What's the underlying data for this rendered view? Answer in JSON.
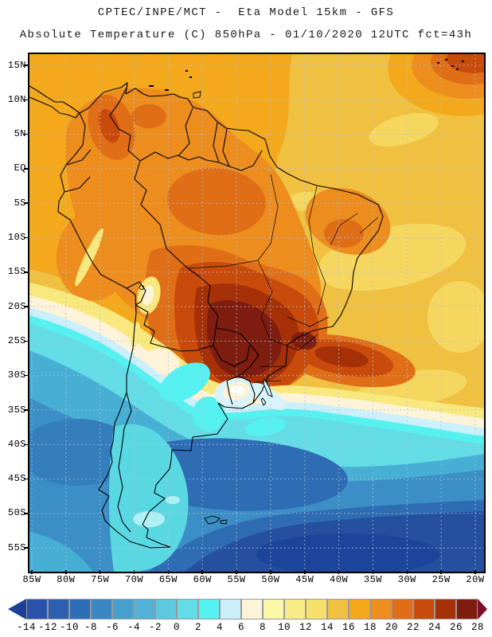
{
  "header": {
    "title": "CPTEC/INPE/MCT -  Eta Model 15km - GFS",
    "subtitle": "Absolute Temperature (C) 850hPa - 01/10/2020 12UTC fct=43h"
  },
  "map": {
    "region_label": "South America",
    "lat_ticks": [
      "15N",
      "10N",
      "5N",
      "EQ",
      "5S",
      "10S",
      "15S",
      "20S",
      "25S",
      "30S",
      "35S",
      "40S",
      "45S",
      "50S",
      "55S"
    ],
    "lon_ticks": [
      "85W",
      "80W",
      "75W",
      "70W",
      "65W",
      "60W",
      "55W",
      "50W",
      "45W",
      "40W",
      "35W",
      "30W",
      "25W",
      "20W"
    ],
    "grid_interval_deg": 5
  },
  "colorbar": {
    "tick_labels": [
      "-14",
      "-12",
      "-10",
      "-8",
      "-6",
      "-4",
      "-2",
      "0",
      "2",
      "4",
      "6",
      "8",
      "10",
      "12",
      "14",
      "16",
      "18",
      "20",
      "22",
      "24",
      "26",
      "28"
    ],
    "cell_colors": [
      "#2A52A8",
      "#2C5FAE",
      "#2E6EB6",
      "#3A86C2",
      "#46A0CE",
      "#52B2D8",
      "#5EC8DE",
      "#63DCE6",
      "#55F1F0",
      "#CBEFFB",
      "#FCF3D9",
      "#FBF7A9",
      "#F9EC86",
      "#F6E06C",
      "#F0C141",
      "#F4A81C",
      "#EC8D1E",
      "#DF6E16",
      "#C94B0C",
      "#A63008",
      "#7F1D10"
    ],
    "left_arrow_color": "#1E3F96",
    "right_arrow_color": "#7D1127"
  },
  "chart_data": {
    "type": "heatmap",
    "title": "Absolute Temperature (C) at 850 hPa, 01/10/2020 12UTC fct=43h",
    "scale_ticks_c": [
      -14,
      -12,
      -10,
      -8,
      -6,
      -4,
      -2,
      0,
      2,
      4,
      6,
      8,
      10,
      12,
      14,
      16,
      18,
      20,
      22,
      24,
      26,
      28
    ],
    "scale_colors": [
      "#2A52A8",
      "#2C5FAE",
      "#2E6EB6",
      "#3A86C2",
      "#46A0CE",
      "#52B2D8",
      "#5EC8DE",
      "#63DCE6",
      "#55F1F0",
      "#CBEFFB",
      "#FCF3D9",
      "#FBF7A9",
      "#F9EC86",
      "#F6E06C",
      "#F0C141",
      "#F4A81C",
      "#EC8D1E",
      "#DF6E16",
      "#C94B0C",
      "#A63008",
      "#7F1D10"
    ],
    "features": [
      "Hot core 24-28C over central Brazil, Paraguay and Sao Paulo region",
      "Warm eddy 20-26C off southeast Brazil coast near 25S 40W",
      "Warm spot 22-24C in northeast corner near 14N 22W",
      "Broad 14-20C over tropical South America and tropical Atlantic",
      "Cold front 6-8C band from Pacific coast near 20S across Uruguay to Atlantic near 35S",
      "Cyan 0-6C over Patagonia and southeast Pacific",
      "Cold pool -6 to -14C over South Atlantic south of 45S"
    ]
  }
}
